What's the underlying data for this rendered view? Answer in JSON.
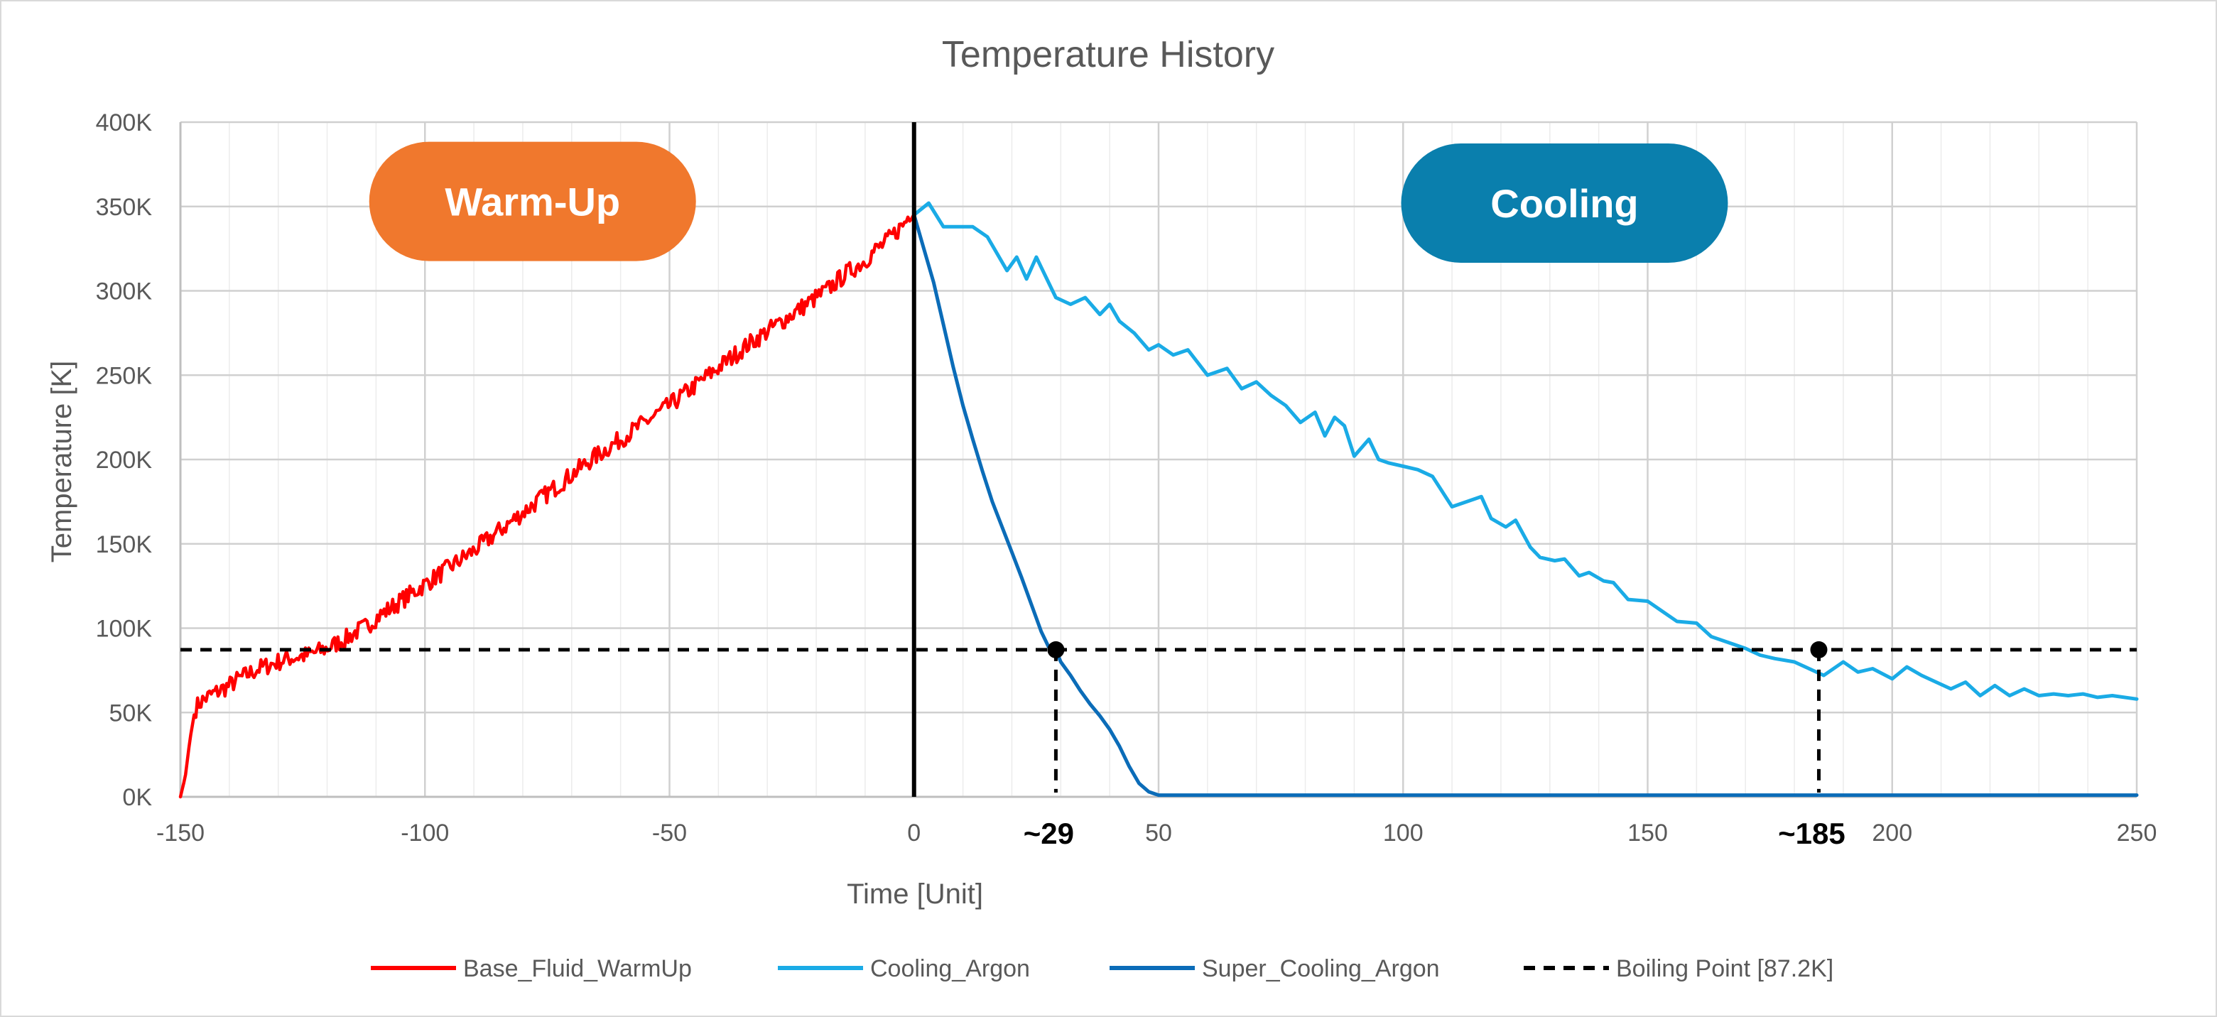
{
  "chart_data": {
    "type": "line",
    "title": "Temperature History",
    "xlabel": "Time [Unit]",
    "ylabel": "Temperature [K]",
    "xlim": [
      -150,
      250
    ],
    "ylim": [
      0,
      400000
    ],
    "x_ticks": [
      {
        "value": -150,
        "label": "-150"
      },
      {
        "value": -100,
        "label": "-100"
      },
      {
        "value": -50,
        "label": "-50"
      },
      {
        "value": 0,
        "label": "0"
      },
      {
        "value": 50,
        "label": "50"
      },
      {
        "value": 100,
        "label": "100"
      },
      {
        "value": 150,
        "label": "150"
      },
      {
        "value": 200,
        "label": "200"
      },
      {
        "value": 250,
        "label": "250"
      }
    ],
    "y_ticks": [
      {
        "value": 0,
        "label": "0K"
      },
      {
        "value": 50000,
        "label": "50K"
      },
      {
        "value": 100000,
        "label": "100K"
      },
      {
        "value": 150000,
        "label": "150K"
      },
      {
        "value": 200000,
        "label": "200K"
      },
      {
        "value": 250000,
        "label": "250K"
      },
      {
        "value": 300000,
        "label": "300K"
      },
      {
        "value": 350000,
        "label": "350K"
      },
      {
        "value": 400000,
        "label": "400K"
      }
    ],
    "grid": true,
    "legend_position": "bottom",
    "series": [
      {
        "name": "Base_Fluid_WarmUp",
        "color": "#ff0000",
        "noisy": true,
        "x": [
          -150,
          -149,
          -148,
          -147,
          -146,
          -144,
          -142,
          -140,
          -138,
          -136,
          -134,
          -132,
          -130,
          -128,
          -126,
          -124,
          -122,
          -120,
          -118,
          -116,
          -114,
          -112,
          -110,
          -106,
          -102,
          -98,
          -94,
          -90,
          -86,
          -82,
          -78,
          -74,
          -70,
          -66,
          -62,
          -58,
          -54,
          -50,
          -46,
          -42,
          -38,
          -34,
          -30,
          -26,
          -22,
          -18,
          -14,
          -10,
          -8,
          -6,
          -4,
          -2,
          0
        ],
        "y": [
          0,
          12000,
          35000,
          52000,
          56000,
          60000,
          63000,
          66000,
          70000,
          73000,
          76000,
          78000,
          80000,
          82000,
          83000,
          84000,
          86000,
          88000,
          91000,
          94000,
          98000,
          101000,
          106000,
          114000,
          122000,
          130000,
          138000,
          146000,
          155000,
          164000,
          173000,
          182000,
          191000,
          200000,
          208000,
          216000,
          224000,
          232000,
          241000,
          250000,
          259000,
          268000,
          276000,
          284000,
          292000,
          300000,
          310000,
          318000,
          324000,
          328000,
          334000,
          340000,
          350000
        ]
      },
      {
        "name": "Cooling_Argon",
        "color": "#1aabe6",
        "noisy": false,
        "x": [
          0,
          3,
          6,
          9,
          12,
          15,
          17,
          19,
          21,
          23,
          25,
          27,
          29,
          32,
          35,
          38,
          40,
          42,
          45,
          48,
          50,
          53,
          56,
          60,
          64,
          67,
          70,
          73,
          76,
          79,
          82,
          84,
          86,
          88,
          90,
          93,
          95,
          97,
          100,
          103,
          106,
          110,
          113,
          116,
          118,
          121,
          123,
          126,
          128,
          131,
          133,
          136,
          138,
          141,
          143,
          146,
          150,
          153,
          156,
          160,
          163,
          166,
          170,
          173,
          176,
          180,
          183,
          186,
          190,
          193,
          196,
          200,
          203,
          206,
          209,
          212,
          215,
          218,
          221,
          224,
          227,
          230,
          233,
          236,
          239,
          242,
          245,
          250
        ],
        "y": [
          345000,
          352000,
          338000,
          338000,
          338000,
          332000,
          322000,
          312000,
          320000,
          307000,
          320000,
          308000,
          296000,
          292000,
          296000,
          286000,
          292000,
          282000,
          275000,
          265000,
          268000,
          262000,
          265000,
          250000,
          254000,
          242000,
          246000,
          238000,
          232000,
          222000,
          228000,
          214000,
          225000,
          220000,
          202000,
          212000,
          200000,
          198000,
          196000,
          194000,
          190000,
          172000,
          175000,
          178000,
          165000,
          160000,
          164000,
          148000,
          142000,
          140000,
          141000,
          131000,
          133000,
          128000,
          127000,
          117000,
          116000,
          110000,
          104000,
          103000,
          95000,
          92000,
          88000,
          84000,
          82000,
          80000,
          76000,
          72000,
          80000,
          74000,
          76000,
          70000,
          77000,
          72000,
          68000,
          64000,
          68000,
          60000,
          66000,
          60000,
          64000,
          60000,
          61000,
          60000,
          61000,
          59000,
          60000,
          58000
        ]
      },
      {
        "name": "Super_Cooling_Argon",
        "color": "#0b6cb8",
        "noisy": false,
        "x": [
          0,
          2,
          4,
          6,
          8,
          10,
          12,
          14,
          16,
          18,
          20,
          22,
          24,
          26,
          28,
          29,
          30,
          32,
          34,
          36,
          38,
          40,
          42,
          44,
          46,
          48,
          50,
          51,
          55,
          100,
          150,
          200,
          250
        ],
        "y": [
          345000,
          325000,
          305000,
          280000,
          255000,
          232000,
          212000,
          193000,
          175000,
          160000,
          145000,
          130000,
          114000,
          98000,
          86000,
          87200,
          80000,
          72000,
          63000,
          55000,
          48000,
          40000,
          30000,
          18000,
          8000,
          3000,
          1000,
          1000,
          1000,
          1000,
          1000,
          1000,
          1000
        ]
      },
      {
        "name": "Boiling Point [87.2K]",
        "color": "#000000",
        "style": "dashed",
        "x": [
          -150,
          250
        ],
        "y": [
          87200,
          87200
        ]
      }
    ],
    "annotations": [
      {
        "type": "vline",
        "x": 0,
        "color": "#000000"
      },
      {
        "type": "point",
        "x": 29,
        "y": 87200,
        "label": "~29"
      },
      {
        "type": "point",
        "x": 185,
        "y": 87200,
        "label": "~185"
      },
      {
        "type": "badge",
        "text": "Warm-Up",
        "x": -78,
        "y": 353000,
        "color": "#f0782d"
      },
      {
        "type": "badge",
        "text": "Cooling",
        "x": 133,
        "y": 352000,
        "color": "#0a7fad"
      }
    ]
  }
}
